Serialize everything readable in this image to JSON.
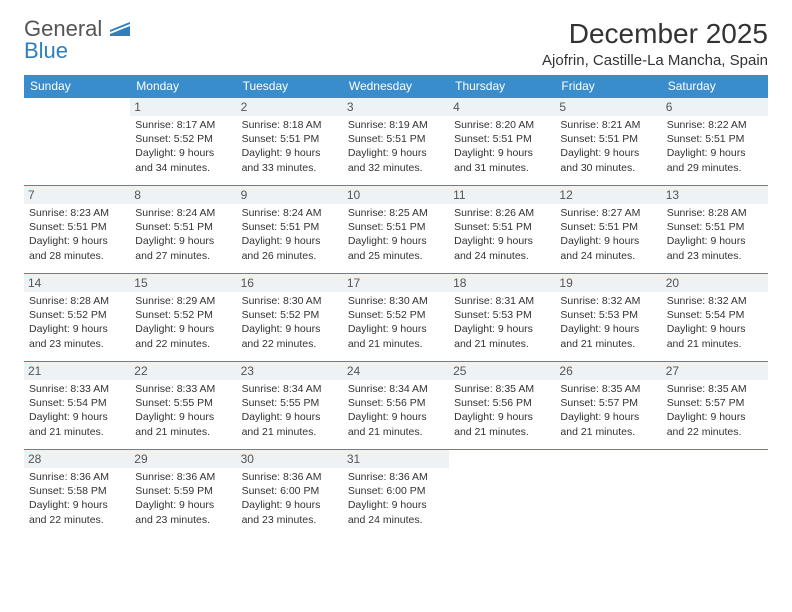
{
  "logo": {
    "text_top": "General",
    "text_bottom": "Blue"
  },
  "header": {
    "month_title": "December 2025",
    "location": "Ajofrin, Castille-La Mancha, Spain"
  },
  "colors": {
    "header_bg": "#3a8dcc",
    "header_fg": "#ffffff",
    "daynum_bg": "#eef2f5",
    "border": "#3a8dcc",
    "logo_blue": "#2f7fbf"
  },
  "days_of_week": [
    "Sunday",
    "Monday",
    "Tuesday",
    "Wednesday",
    "Thursday",
    "Friday",
    "Saturday"
  ],
  "weeks": [
    [
      {
        "n": "",
        "sr": "",
        "ss": "",
        "dl": ""
      },
      {
        "n": "1",
        "sr": "Sunrise: 8:17 AM",
        "ss": "Sunset: 5:52 PM",
        "dl": "Daylight: 9 hours and 34 minutes."
      },
      {
        "n": "2",
        "sr": "Sunrise: 8:18 AM",
        "ss": "Sunset: 5:51 PM",
        "dl": "Daylight: 9 hours and 33 minutes."
      },
      {
        "n": "3",
        "sr": "Sunrise: 8:19 AM",
        "ss": "Sunset: 5:51 PM",
        "dl": "Daylight: 9 hours and 32 minutes."
      },
      {
        "n": "4",
        "sr": "Sunrise: 8:20 AM",
        "ss": "Sunset: 5:51 PM",
        "dl": "Daylight: 9 hours and 31 minutes."
      },
      {
        "n": "5",
        "sr": "Sunrise: 8:21 AM",
        "ss": "Sunset: 5:51 PM",
        "dl": "Daylight: 9 hours and 30 minutes."
      },
      {
        "n": "6",
        "sr": "Sunrise: 8:22 AM",
        "ss": "Sunset: 5:51 PM",
        "dl": "Daylight: 9 hours and 29 minutes."
      }
    ],
    [
      {
        "n": "7",
        "sr": "Sunrise: 8:23 AM",
        "ss": "Sunset: 5:51 PM",
        "dl": "Daylight: 9 hours and 28 minutes."
      },
      {
        "n": "8",
        "sr": "Sunrise: 8:24 AM",
        "ss": "Sunset: 5:51 PM",
        "dl": "Daylight: 9 hours and 27 minutes."
      },
      {
        "n": "9",
        "sr": "Sunrise: 8:24 AM",
        "ss": "Sunset: 5:51 PM",
        "dl": "Daylight: 9 hours and 26 minutes."
      },
      {
        "n": "10",
        "sr": "Sunrise: 8:25 AM",
        "ss": "Sunset: 5:51 PM",
        "dl": "Daylight: 9 hours and 25 minutes."
      },
      {
        "n": "11",
        "sr": "Sunrise: 8:26 AM",
        "ss": "Sunset: 5:51 PM",
        "dl": "Daylight: 9 hours and 24 minutes."
      },
      {
        "n": "12",
        "sr": "Sunrise: 8:27 AM",
        "ss": "Sunset: 5:51 PM",
        "dl": "Daylight: 9 hours and 24 minutes."
      },
      {
        "n": "13",
        "sr": "Sunrise: 8:28 AM",
        "ss": "Sunset: 5:51 PM",
        "dl": "Daylight: 9 hours and 23 minutes."
      }
    ],
    [
      {
        "n": "14",
        "sr": "Sunrise: 8:28 AM",
        "ss": "Sunset: 5:52 PM",
        "dl": "Daylight: 9 hours and 23 minutes."
      },
      {
        "n": "15",
        "sr": "Sunrise: 8:29 AM",
        "ss": "Sunset: 5:52 PM",
        "dl": "Daylight: 9 hours and 22 minutes."
      },
      {
        "n": "16",
        "sr": "Sunrise: 8:30 AM",
        "ss": "Sunset: 5:52 PM",
        "dl": "Daylight: 9 hours and 22 minutes."
      },
      {
        "n": "17",
        "sr": "Sunrise: 8:30 AM",
        "ss": "Sunset: 5:52 PM",
        "dl": "Daylight: 9 hours and 21 minutes."
      },
      {
        "n": "18",
        "sr": "Sunrise: 8:31 AM",
        "ss": "Sunset: 5:53 PM",
        "dl": "Daylight: 9 hours and 21 minutes."
      },
      {
        "n": "19",
        "sr": "Sunrise: 8:32 AM",
        "ss": "Sunset: 5:53 PM",
        "dl": "Daylight: 9 hours and 21 minutes."
      },
      {
        "n": "20",
        "sr": "Sunrise: 8:32 AM",
        "ss": "Sunset: 5:54 PM",
        "dl": "Daylight: 9 hours and 21 minutes."
      }
    ],
    [
      {
        "n": "21",
        "sr": "Sunrise: 8:33 AM",
        "ss": "Sunset: 5:54 PM",
        "dl": "Daylight: 9 hours and 21 minutes."
      },
      {
        "n": "22",
        "sr": "Sunrise: 8:33 AM",
        "ss": "Sunset: 5:55 PM",
        "dl": "Daylight: 9 hours and 21 minutes."
      },
      {
        "n": "23",
        "sr": "Sunrise: 8:34 AM",
        "ss": "Sunset: 5:55 PM",
        "dl": "Daylight: 9 hours and 21 minutes."
      },
      {
        "n": "24",
        "sr": "Sunrise: 8:34 AM",
        "ss": "Sunset: 5:56 PM",
        "dl": "Daylight: 9 hours and 21 minutes."
      },
      {
        "n": "25",
        "sr": "Sunrise: 8:35 AM",
        "ss": "Sunset: 5:56 PM",
        "dl": "Daylight: 9 hours and 21 minutes."
      },
      {
        "n": "26",
        "sr": "Sunrise: 8:35 AM",
        "ss": "Sunset: 5:57 PM",
        "dl": "Daylight: 9 hours and 21 minutes."
      },
      {
        "n": "27",
        "sr": "Sunrise: 8:35 AM",
        "ss": "Sunset: 5:57 PM",
        "dl": "Daylight: 9 hours and 22 minutes."
      }
    ],
    [
      {
        "n": "28",
        "sr": "Sunrise: 8:36 AM",
        "ss": "Sunset: 5:58 PM",
        "dl": "Daylight: 9 hours and 22 minutes."
      },
      {
        "n": "29",
        "sr": "Sunrise: 8:36 AM",
        "ss": "Sunset: 5:59 PM",
        "dl": "Daylight: 9 hours and 23 minutes."
      },
      {
        "n": "30",
        "sr": "Sunrise: 8:36 AM",
        "ss": "Sunset: 6:00 PM",
        "dl": "Daylight: 9 hours and 23 minutes."
      },
      {
        "n": "31",
        "sr": "Sunrise: 8:36 AM",
        "ss": "Sunset: 6:00 PM",
        "dl": "Daylight: 9 hours and 24 minutes."
      },
      {
        "n": "",
        "sr": "",
        "ss": "",
        "dl": ""
      },
      {
        "n": "",
        "sr": "",
        "ss": "",
        "dl": ""
      },
      {
        "n": "",
        "sr": "",
        "ss": "",
        "dl": ""
      }
    ]
  ]
}
